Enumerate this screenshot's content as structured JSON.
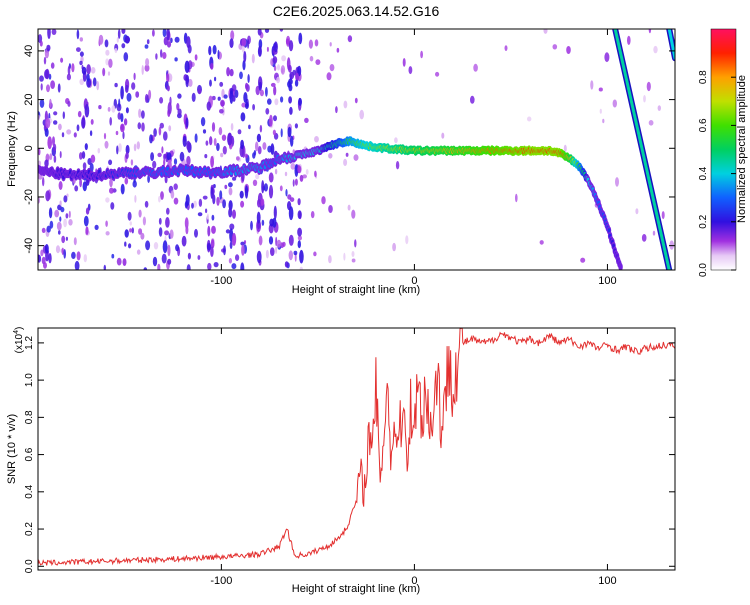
{
  "title": "C2E6.2025.063.14.52.G16",
  "chart_data": [
    {
      "type": "heatmap",
      "xlabel": "Height of straight line (km)",
      "ylabel": "Frequency (Hz)",
      "xlim": [
        -195,
        135
      ],
      "ylim": [
        -50,
        49
      ],
      "xticks": [
        -100,
        0,
        100
      ],
      "yticks": [
        -40,
        -20,
        0,
        20,
        40
      ],
      "colorbar": {
        "label": "Normalized spectral amplitude",
        "range": [
          0,
          1
        ],
        "ticks": [
          0.0,
          0.2,
          0.4,
          0.6,
          0.8
        ]
      },
      "trace": {
        "x": [
          -195,
          -180,
          -165,
          -150,
          -135,
          -120,
          -105,
          -90,
          -80,
          -73,
          -68,
          -60,
          -50,
          -40,
          -33,
          -25,
          -15,
          0,
          20,
          40,
          60,
          70,
          75,
          80,
          85,
          90,
          95,
          100,
          103,
          107
        ],
        "y": [
          -9,
          -11,
          -11,
          -10,
          -10,
          -9,
          -10,
          -9,
          -8,
          -5,
          -4,
          -3,
          -1,
          2,
          3,
          1,
          0,
          -1,
          -1,
          -1,
          -1,
          -1,
          -2,
          -4,
          -7,
          -13,
          -22,
          -32,
          -40,
          -49
        ],
        "amp": [
          0.15,
          0.2,
          0.2,
          0.25,
          0.3,
          0.3,
          0.3,
          0.35,
          0.35,
          0.3,
          0.35,
          0.4,
          0.4,
          0.5,
          0.6,
          0.65,
          0.7,
          0.75,
          0.8,
          0.85,
          0.9,
          0.9,
          0.9,
          0.8,
          0.6,
          0.4,
          0.3,
          0.25,
          0.2,
          0.15
        ]
      },
      "aliased_traces": [
        {
          "x": [
            104,
            132
          ],
          "y": [
            49,
            -50
          ],
          "amp": 0.3
        },
        {
          "x": [
            132,
            135
          ],
          "y": [
            49,
            37
          ],
          "amp": 0.25
        }
      ],
      "noise_bands_x": [
        -190,
        -170,
        -150,
        -128,
        -118,
        -105,
        -95,
        -88,
        -80,
        -73,
        -65,
        -60
      ]
    },
    {
      "type": "line",
      "xlabel": "Height of straight line (km)",
      "ylabel": "SNR (10 * v/v)",
      "y_multiplier": "(x10^4)",
      "xlim": [
        -195,
        135
      ],
      "ylim": [
        -0.02,
        1.28
      ],
      "xticks": [
        -100,
        0,
        100
      ],
      "yticks": [
        0.0,
        0.2,
        0.4,
        0.6,
        0.8,
        1.0,
        1.2
      ],
      "series": [
        {
          "color": "#e3302f",
          "x": [
            -195,
            -180,
            -165,
            -150,
            -135,
            -120,
            -110,
            -100,
            -90,
            -80,
            -75,
            -70,
            -66,
            -62,
            -55,
            -50,
            -45,
            -40,
            -35,
            -30,
            -28,
            -26,
            -24,
            -22,
            -20,
            -18,
            -16,
            -14,
            -12,
            -10,
            -8,
            -6,
            -4,
            -2,
            0,
            2,
            4,
            6,
            8,
            10,
            12,
            14,
            16,
            18,
            20,
            22,
            25,
            30,
            35,
            40,
            45,
            50,
            55,
            60,
            65,
            70,
            75,
            80,
            85,
            90,
            95,
            100,
            105,
            110,
            115,
            120,
            125,
            130,
            135
          ],
          "y": [
            0.01,
            0.015,
            0.02,
            0.025,
            0.03,
            0.035,
            0.04,
            0.045,
            0.05,
            0.06,
            0.08,
            0.1,
            0.2,
            0.05,
            0.06,
            0.08,
            0.1,
            0.14,
            0.2,
            0.35,
            0.5,
            0.4,
            0.7,
            0.55,
            1.0,
            0.45,
            0.7,
            1.03,
            0.55,
            0.8,
            0.65,
            0.9,
            0.6,
            0.85,
            0.8,
            0.95,
            0.8,
            1.0,
            0.7,
            0.9,
            1.05,
            0.75,
            0.85,
            1.15,
            1.0,
            1.1,
            1.2,
            1.22,
            1.2,
            1.21,
            1.25,
            1.23,
            1.2,
            1.22,
            1.2,
            1.24,
            1.2,
            1.22,
            1.18,
            1.2,
            1.17,
            1.19,
            1.16,
            1.18,
            1.15,
            1.17,
            1.18,
            1.19,
            1.18
          ]
        }
      ]
    }
  ]
}
